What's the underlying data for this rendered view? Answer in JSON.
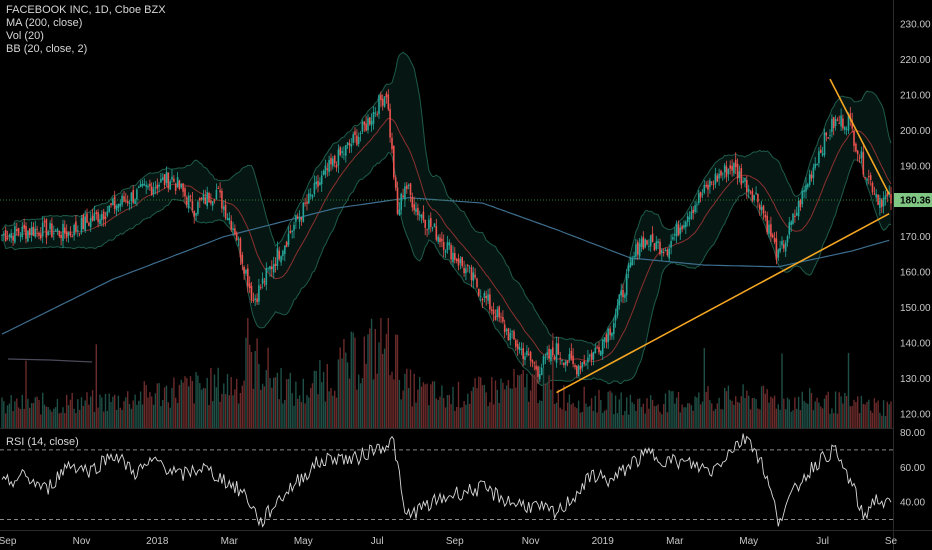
{
  "legend": {
    "symbol": "FACEBOOK INC, 1D, Cboe BZX",
    "ma": "MA (200, close)",
    "vol": "Vol (20)",
    "bb": "BB (20, close, 2)",
    "rsi": "RSI (14, close)"
  },
  "colors": {
    "up": "#26a69a",
    "down": "#ef5350",
    "ma": "#3d6e8f",
    "bb_band": "#1e5a4a",
    "bb_basis": "#8b2f2f",
    "trendline": "#f5a623",
    "price_line": "#2e7d32",
    "price_tag": "#81c784"
  },
  "chart_data": [
    {
      "type": "candlestick",
      "title": "FACEBOOK INC, 1D, Cboe BZX",
      "ylim": [
        116,
        234
      ],
      "yticks": [
        120,
        130,
        140,
        150,
        160,
        170,
        180,
        190,
        200,
        210,
        220,
        230
      ],
      "ytick_labels": [
        "120.00",
        "130.00",
        "140.00",
        "150.00",
        "160.00",
        "170.00",
        "180.00",
        "190.00",
        "200.00",
        "210.00",
        "220.00",
        "230.00"
      ],
      "last_price": 180.36,
      "last_price_label": "180.36",
      "x_labels": [
        "Sep",
        "Nov",
        "2018",
        "Mar",
        "May",
        "Jul",
        "Sep",
        "Nov",
        "2019",
        "Mar",
        "May",
        "Jul",
        "Se"
      ],
      "x_label_index": [
        3,
        43,
        84,
        123,
        163,
        203,
        245,
        286,
        325,
        364,
        404,
        444,
        481
      ],
      "close_series": {
        "name": "close",
        "x_index": [
          0,
          18,
          36,
          60,
          84,
          92,
          104,
          116,
          126,
          136,
          146,
          160,
          175,
          195,
          208,
          214,
          218,
          224,
          240,
          256,
          276,
          290,
          300,
          310,
          320,
          330,
          345,
          360,
          370,
          385,
          395,
          410,
          420,
          432,
          442,
          450,
          458,
          466,
          474,
          480
        ],
        "values": [
          170.5,
          172.0,
          171.0,
          178.5,
          185.0,
          186.5,
          178.0,
          183.0,
          172.0,
          152.0,
          162.0,
          175.0,
          188.0,
          200.0,
          211.0,
          176.0,
          185.0,
          178.0,
          168.0,
          157.0,
          141.0,
          132.5,
          138.0,
          133.0,
          137.0,
          145.0,
          169.0,
          167.0,
          176.0,
          186.0,
          190.0,
          180.0,
          164.0,
          180.0,
          194.0,
          202.0,
          203.0,
          190.0,
          181.0,
          180.4
        ]
      },
      "ma200": {
        "name": "MA (200, close)",
        "x_index": [
          0,
          60,
          120,
          180,
          220,
          260,
          300,
          340,
          380,
          420,
          460,
          480
        ],
        "values": [
          142.5,
          158.0,
          170.0,
          178.0,
          181.0,
          179.5,
          172.0,
          164.0,
          162.0,
          161.5,
          166.0,
          169.0
        ]
      },
      "trendlines": [
        {
          "x_index": [
            300,
            480
          ],
          "values": [
            126.0,
            176.5
          ]
        },
        {
          "x_index": [
            448,
            480
          ],
          "values": [
            214.5,
            182.0
          ]
        }
      ],
      "volume": {
        "name": "Vol (20)",
        "x_index": [
          0,
          60,
          92,
          130,
          136,
          160,
          210,
          218,
          240,
          290,
          300,
          320,
          340,
          400,
          440,
          480
        ],
        "values": [
          15,
          18,
          25,
          30,
          45,
          22,
          60,
          28,
          20,
          30,
          22,
          18,
          16,
          20,
          18,
          14
        ]
      }
    },
    {
      "type": "line",
      "title": "RSI (14, close)",
      "ylim": [
        24,
        82
      ],
      "yticks": [
        40,
        60,
        80
      ],
      "ytick_labels": [
        "40.00",
        "60.00",
        "80.00"
      ],
      "bands": [
        30,
        70
      ],
      "series": [
        {
          "name": "RSI",
          "x_index": [
            0,
            12,
            24,
            36,
            48,
            60,
            72,
            84,
            96,
            108,
            120,
            132,
            140,
            150,
            160,
            170,
            180,
            190,
            200,
            212,
            218,
            230,
            245,
            260,
            275,
            290,
            300,
            310,
            320,
            330,
            340,
            350,
            360,
            372,
            384,
            396,
            404,
            412,
            420,
            432,
            440,
            450,
            460,
            466,
            472,
            480
          ],
          "values": [
            50,
            55,
            47,
            62,
            58,
            68,
            57,
            64,
            55,
            60,
            53,
            44,
            28,
            42,
            52,
            62,
            66,
            64,
            70,
            75,
            32,
            38,
            45,
            48,
            40,
            37,
            33,
            44,
            56,
            52,
            62,
            68,
            64,
            62,
            58,
            72,
            78,
            60,
            30,
            52,
            62,
            70,
            50,
            31,
            42,
            38
          ]
        }
      ]
    }
  ]
}
